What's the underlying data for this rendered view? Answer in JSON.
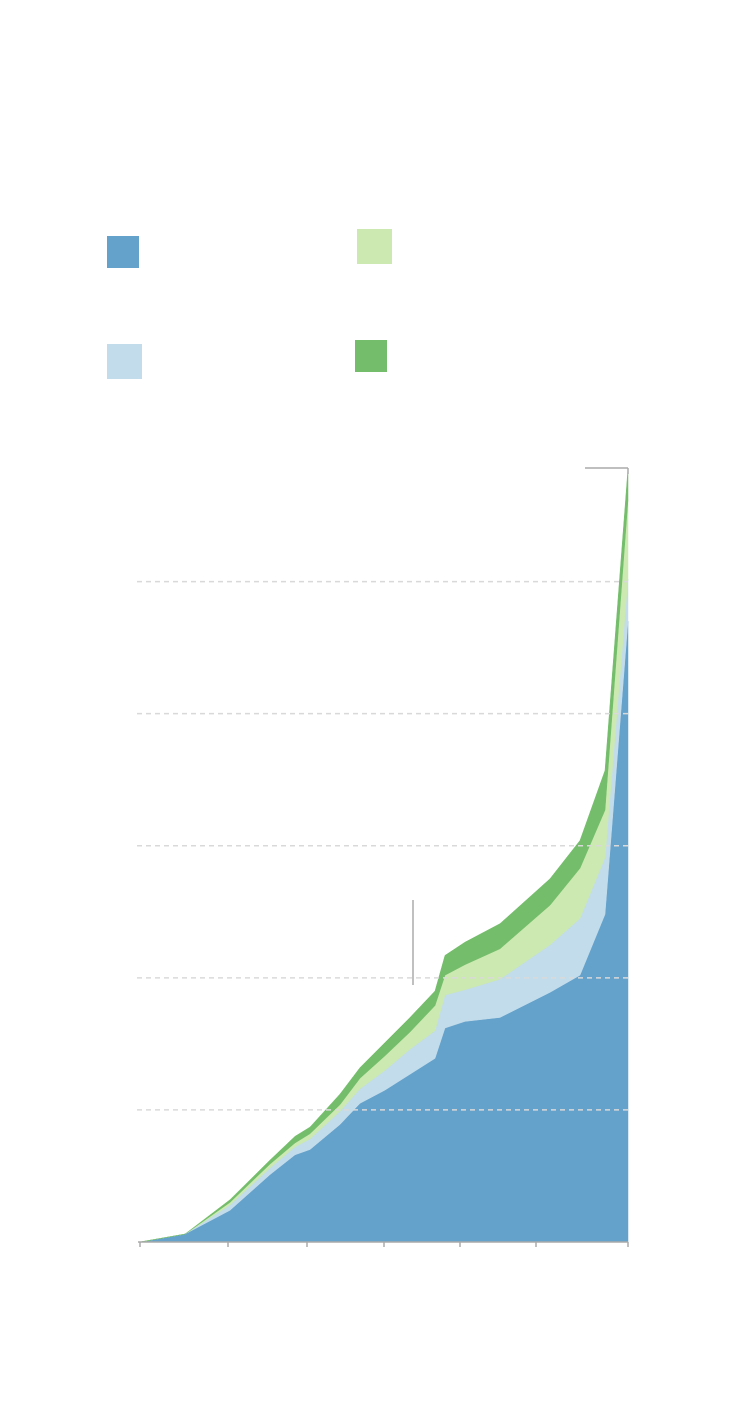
{
  "chart_data": {
    "type": "area",
    "stacked": true,
    "x": [
      0,
      45,
      90,
      130,
      155,
      170,
      200,
      220,
      245,
      270,
      295,
      305,
      325,
      360,
      410,
      440,
      465,
      488
    ],
    "xlim": [
      0,
      488
    ],
    "xticks": [
      0,
      88,
      167,
      244,
      320,
      396,
      488
    ],
    "ylim": [
      0,
      5.86
    ],
    "yticks": [
      1,
      2,
      3,
      4,
      5
    ],
    "grid": true,
    "series": [
      {
        "color": "#64a1cb",
        "values": [
          0,
          0.06,
          0.24,
          0.51,
          0.66,
          0.7,
          0.89,
          1.05,
          1.15,
          1.27,
          1.39,
          1.62,
          1.67,
          1.7,
          1.89,
          2.02,
          2.48,
          4.7
        ]
      },
      {
        "color": "#c2dceb",
        "values": [
          0,
          0,
          0.04,
          0.05,
          0.06,
          0.08,
          0.1,
          0.11,
          0.15,
          0.19,
          0.21,
          0.25,
          0.24,
          0.29,
          0.36,
          0.43,
          0.43,
          0.32
        ]
      },
      {
        "color": "#cbe9b0",
        "values": [
          0,
          0,
          0.02,
          0.03,
          0.03,
          0.04,
          0.05,
          0.08,
          0.11,
          0.13,
          0.19,
          0.15,
          0.19,
          0.23,
          0.3,
          0.38,
          0.36,
          0.6
        ]
      },
      {
        "color": "#74bd6b",
        "values": [
          0,
          0,
          0.02,
          0.03,
          0.05,
          0.05,
          0.08,
          0.08,
          0.1,
          0.11,
          0.11,
          0.15,
          0.17,
          0.19,
          0.2,
          0.21,
          0.3,
          0.24
        ]
      }
    ]
  }
}
